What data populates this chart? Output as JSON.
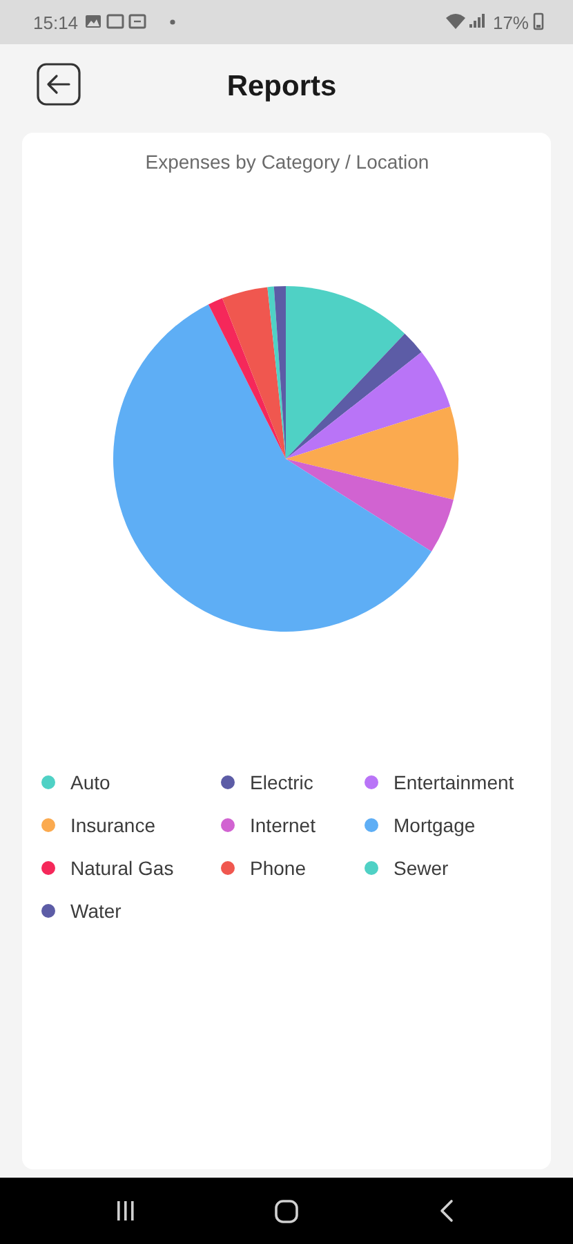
{
  "chart_data": {
    "type": "pie",
    "title": "Reports",
    "subtitle": "Expenses by Category / Location",
    "categories": [
      "Auto",
      "Electric",
      "Entertainment",
      "Insurance",
      "Internet",
      "Mortgage",
      "Natural Gas",
      "Phone",
      "Sewer",
      "Water"
    ],
    "values": [
      12.1,
      2.3,
      5.7,
      8.7,
      5.2,
      58.6,
      1.4,
      4.3,
      0.6,
      1.1
    ],
    "colors": [
      "#4fd1c5",
      "#5c5ca6",
      "#b974f7",
      "#fbaa4f",
      "#d163d1",
      "#5eaef5",
      "#f5285a",
      "#f0574f",
      "#4fd1c5",
      "#5c5ca6"
    ],
    "legend": "bottom",
    "annotations": [
      "15:14",
      "17%"
    ]
  }
}
